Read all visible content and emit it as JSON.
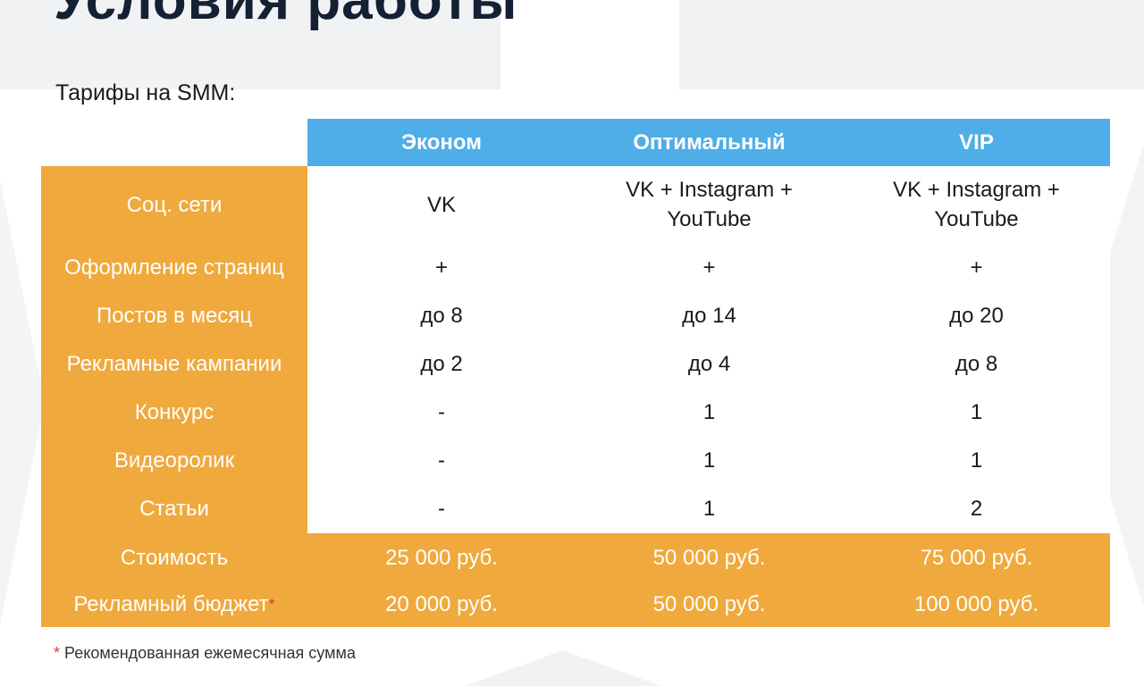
{
  "title": "Условия работы",
  "subtitle": "Тарифы на SMM:",
  "table": {
    "columns": [
      "Эконом",
      "Оптимальный",
      "VIP"
    ],
    "rows": [
      {
        "label": "Соц. сети",
        "values": [
          "VK",
          "VK + Instagram + YouTube",
          "VK + Instagram + YouTube"
        ]
      },
      {
        "label": "Оформление страниц",
        "values": [
          "+",
          "+",
          "+"
        ]
      },
      {
        "label": "Постов в месяц",
        "values": [
          "до 8",
          "до 14",
          "до 20"
        ]
      },
      {
        "label": "Рекламные кампании",
        "values": [
          "до 2",
          "до 4",
          "до 8"
        ]
      },
      {
        "label": "Конкурс",
        "values": [
          "-",
          "1",
          "1"
        ]
      },
      {
        "label": "Видеоролик",
        "values": [
          "-",
          "1",
          "1"
        ]
      },
      {
        "label": "Статьи",
        "values": [
          "-",
          "1",
          "2"
        ]
      }
    ],
    "price_rows": [
      {
        "label": "Стоимость",
        "values": [
          "25 000 руб.",
          "50 000 руб.",
          "75 000 руб."
        ]
      },
      {
        "label": "Рекламный бюджет",
        "values": [
          "20 000 руб.",
          "50 000 руб.",
          "100 000 руб."
        ]
      }
    ]
  },
  "asterisk": "*",
  "footnote": "Рекомендованная ежемесячная сумма",
  "colors": {
    "header_blue": "#4faee8",
    "label_orange": "#f0a93c",
    "title_navy": "#142033",
    "asterisk_red": "#e53935"
  }
}
